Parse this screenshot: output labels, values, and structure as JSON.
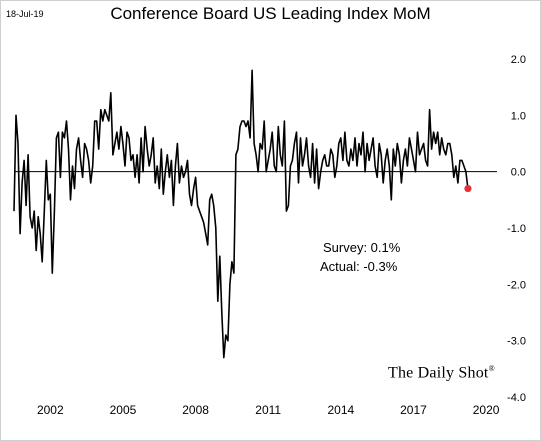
{
  "header": {
    "date": "18-Jul-19",
    "title": "Conference Board US Leading Index MoM"
  },
  "annotations": {
    "survey": "Survey: 0.1%",
    "actual": "Actual:  -0.3%"
  },
  "brand": {
    "name": "The Daily Shot",
    "mark": "®"
  },
  "colors": {
    "line": "#000000",
    "latest_marker": "#e8303a",
    "zero_line": "#000000",
    "frame": "#cfcfcf"
  },
  "chart_data": {
    "type": "line",
    "title": "Conference Board US Leading Index MoM",
    "xlabel": "",
    "ylabel": "",
    "xlim": [
      2000.5,
      2020.45
    ],
    "ylim": [
      -4.0,
      2.0
    ],
    "x_ticks": [
      {
        "value": 2002,
        "label": "2002"
      },
      {
        "value": 2005,
        "label": "2005"
      },
      {
        "value": 2008,
        "label": "2008"
      },
      {
        "value": 2011,
        "label": "2011"
      },
      {
        "value": 2014,
        "label": "2014"
      },
      {
        "value": 2017,
        "label": "2017"
      },
      {
        "value": 2020,
        "label": "2020"
      }
    ],
    "y_ticks": [
      {
        "value": 2.0,
        "label": "2.0"
      },
      {
        "value": 1.0,
        "label": "1.0"
      },
      {
        "value": 0.0,
        "label": "0.0"
      },
      {
        "value": -1.0,
        "label": "-1.0"
      },
      {
        "value": -2.0,
        "label": "-2.0"
      },
      {
        "value": -3.0,
        "label": "-3.0"
      },
      {
        "value": -4.0,
        "label": "-4.0"
      }
    ],
    "grid": false,
    "legend": "none",
    "start": {
      "year": 2000,
      "month": 7
    },
    "values": [
      -0.7,
      1.0,
      0.5,
      -1.1,
      -0.2,
      0.2,
      -0.6,
      0.3,
      -0.8,
      -1.0,
      -0.7,
      -1.4,
      -0.8,
      -1.1,
      -1.6,
      -0.7,
      0.2,
      -0.5,
      -0.4,
      -1.8,
      -0.7,
      0.6,
      0.7,
      -0.1,
      0.7,
      0.6,
      0.9,
      0.4,
      -0.5,
      0.1,
      -0.3,
      0.4,
      0.6,
      0.2,
      -0.1,
      0.5,
      0.4,
      0.2,
      -0.2,
      0.1,
      0.9,
      0.9,
      0.4,
      1.1,
      0.9,
      1.1,
      1.0,
      0.9,
      1.4,
      0.3,
      0.5,
      0.7,
      0.4,
      0.8,
      0.5,
      0.1,
      0.7,
      0.6,
      0.2,
      0.3,
      -0.1,
      0.3,
      -0.2,
      0.6,
      0.0,
      0.8,
      0.4,
      0.1,
      0.3,
      0.6,
      -0.2,
      0.1,
      -0.3,
      0.4,
      -0.4,
      0.0,
      0.3,
      -0.1,
      0.2,
      -0.6,
      0.1,
      0.5,
      -0.2,
      0.1,
      -0.1,
      0.0,
      0.2,
      -0.4,
      -0.6,
      -0.3,
      -0.1,
      -0.6,
      -0.7,
      -0.8,
      -0.9,
      -1.1,
      -1.3,
      -0.5,
      -0.4,
      -0.6,
      -1.0,
      -2.3,
      -1.5,
      -2.5,
      -3.3,
      -2.9,
      -3.0,
      -2.0,
      -1.6,
      -1.8,
      0.3,
      0.4,
      0.8,
      0.9,
      0.9,
      0.8,
      0.9,
      0.6,
      1.8,
      0.5,
      0.3,
      0.0,
      0.5,
      0.4,
      0.9,
      0.0,
      0.2,
      0.4,
      0.7,
      0.1,
      0.0,
      0.8,
      0.3,
      0.1,
      0.9,
      -0.7,
      -0.6,
      0.1,
      0.2,
      0.5,
      0.7,
      -0.2,
      0.6,
      0.1,
      0.3,
      0.6,
      0.1,
      -0.1,
      0.5,
      -0.2,
      0.4,
      -0.3,
      0.0,
      0.2,
      0.3,
      0.1,
      0.1,
      0.4,
      0.3,
      -0.1,
      0.1,
      0.5,
      0.6,
      0.2,
      0.7,
      0.2,
      0.1,
      0.4,
      0.2,
      0.6,
      0.1,
      0.5,
      0.3,
      0.7,
      0.0,
      0.5,
      0.2,
      0.4,
      0.6,
      0.1,
      -0.1,
      0.5,
      0.3,
      -0.2,
      0.2,
      0.4,
      0.1,
      -0.5,
      0.4,
      0.1,
      0.5,
      0.3,
      -0.2,
      0.2,
      0.4,
      0.1,
      0.6,
      0.4,
      0.2,
      0.0,
      0.7,
      0.3,
      0.4,
      0.5,
      0.2,
      0.1,
      1.1,
      0.4,
      0.7,
      0.5,
      0.7,
      0.3,
      0.6,
      0.4,
      0.3,
      0.5,
      0.5,
      0.3,
      -0.1,
      0.1,
      -0.2,
      0.2,
      0.2,
      0.1,
      0.0,
      -0.3
    ],
    "latest": {
      "label": "Actual",
      "value": -0.3
    }
  }
}
